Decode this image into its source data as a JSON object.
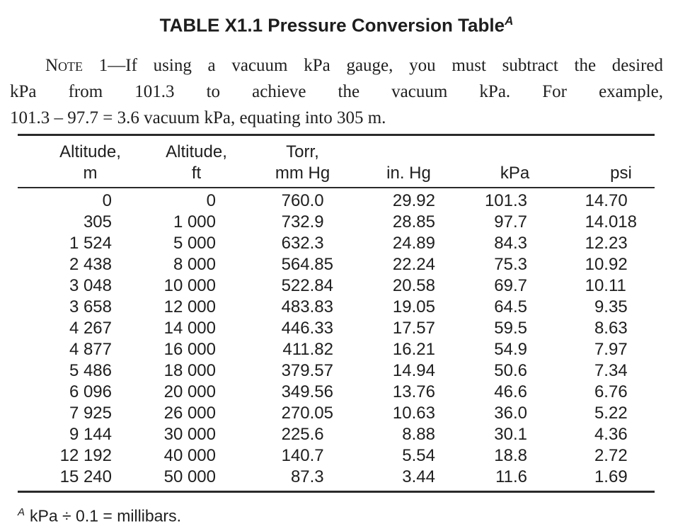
{
  "title": {
    "text": "TABLE X1.1 Pressure Conversion Table",
    "footnote_marker": "A"
  },
  "note": {
    "label": "Note",
    "line1_rest": " 1—If using a vacuum kPa gauge, you must subtract the desired",
    "line2": "kPa from 101.3 to achieve the vacuum kPa. For example,",
    "line3": "101.3 – 97.7 = 3.6 vacuum kPa, equating into 305 m."
  },
  "table": {
    "columns": [
      {
        "id": "altitude_m",
        "header_lines": [
          "Altitude,",
          "m"
        ]
      },
      {
        "id": "altitude_ft",
        "header_lines": [
          "Altitude,",
          "ft"
        ]
      },
      {
        "id": "torr_mm_hg",
        "header_lines": [
          "Torr,",
          "mm Hg"
        ]
      },
      {
        "id": "in_hg",
        "header_lines": [
          "in. Hg"
        ]
      },
      {
        "id": "kpa",
        "header_lines": [
          "kPa"
        ]
      },
      {
        "id": "psi",
        "header_lines": [
          "psi"
        ]
      }
    ],
    "rows": [
      [
        "0",
        "0",
        "760.0",
        "29.92",
        "101.3",
        "14.70"
      ],
      [
        "305",
        "1 000",
        "732.9",
        "28.85",
        "97.7",
        "14.018"
      ],
      [
        "1 524",
        "5 000",
        "632.3",
        "24.89",
        "84.3",
        "12.23"
      ],
      [
        "2 438",
        "8 000",
        "564.85",
        "22.24",
        "75.3",
        "10.92"
      ],
      [
        "3 048",
        "10 000",
        "522.84",
        "20.58",
        "69.7",
        "10.11"
      ],
      [
        "3 658",
        "12 000",
        "483.83",
        "19.05",
        "64.5",
        "9.35"
      ],
      [
        "4 267",
        "14 000",
        "446.33",
        "17.57",
        "59.5",
        "8.63"
      ],
      [
        "4 877",
        "16 000",
        "411.82",
        "16.21",
        "54.9",
        "7.97"
      ],
      [
        "5 486",
        "18 000",
        "379.57",
        "14.94",
        "50.6",
        "7.34"
      ],
      [
        "6 096",
        "20 000",
        "349.56",
        "13.76",
        "46.6",
        "6.76"
      ],
      [
        "7 925",
        "26 000",
        "270.05",
        "10.63",
        "36.0",
        "5.22"
      ],
      [
        "9 144",
        "30 000",
        "225.6",
        "8.88",
        "30.1",
        "4.36"
      ],
      [
        "12 192",
        "40 000",
        "140.7",
        "5.54",
        "18.8",
        "2.72"
      ],
      [
        "15 240",
        "50 000",
        "87.3",
        "3.44",
        "11.6",
        "1.69"
      ]
    ]
  },
  "footnote": {
    "marker": "A",
    "text": "kPa ÷ 0.1 = millibars."
  },
  "colors": {
    "text": "#1e1e1e",
    "rule": "#2a2a2a",
    "background": "#ffffff"
  }
}
